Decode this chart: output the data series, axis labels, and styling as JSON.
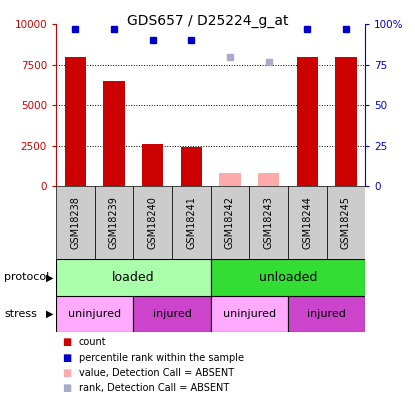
{
  "title": "GDS657 / D25224_g_at",
  "samples": [
    "GSM18238",
    "GSM18239",
    "GSM18240",
    "GSM18241",
    "GSM18242",
    "GSM18243",
    "GSM18244",
    "GSM18245"
  ],
  "count_values": [
    8000,
    6500,
    2600,
    2450,
    null,
    null,
    8000,
    8000
  ],
  "count_absent_values": [
    null,
    null,
    null,
    null,
    800,
    800,
    null,
    null
  ],
  "rank_values": [
    97,
    97,
    90,
    90,
    null,
    null,
    97,
    97
  ],
  "rank_absent_values": [
    null,
    null,
    null,
    null,
    80,
    77,
    null,
    null
  ],
  "ylim_left": [
    0,
    10000
  ],
  "ylim_right": [
    0,
    100
  ],
  "yticks_left": [
    0,
    2500,
    5000,
    7500,
    10000
  ],
  "yticks_right": [
    0,
    25,
    50,
    75,
    100
  ],
  "ytick_labels_left": [
    "0",
    "2500",
    "5000",
    "7500",
    "10000"
  ],
  "ytick_labels_right": [
    "0",
    "25",
    "50",
    "75",
    "100%"
  ],
  "bar_color": "#cc0000",
  "bar_absent_color": "#ffaaaa",
  "dot_color": "#0000cc",
  "dot_absent_color": "#aaaacc",
  "protocol_loaded_color": "#aaffaa",
  "protocol_unloaded_color": "#33dd33",
  "stress_uninjured_color": "#ffaaff",
  "stress_injured_color": "#cc44cc",
  "axis_left_color": "#cc0000",
  "axis_right_color": "#0000cc",
  "background_color": "#ffffff",
  "label_area_color": "#cccccc"
}
